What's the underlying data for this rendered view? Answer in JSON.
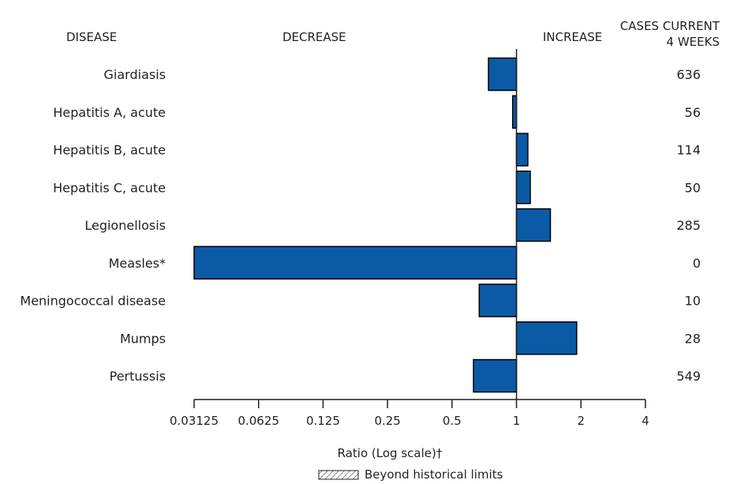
{
  "headers": {
    "disease": "DISEASE",
    "decrease": "DECREASE",
    "increase": "INCREASE",
    "cases_line1": "CASES CURRENT",
    "cases_line2": "4 WEEKS"
  },
  "legend": {
    "label": "Beyond historical limits"
  },
  "chart_data": {
    "type": "bar",
    "orientation": "horizontal",
    "scale": "log2",
    "baseline": 1,
    "xlabel": "Ratio (Log scale)†",
    "xlim": [
      0.03125,
      4
    ],
    "x_ticks": [
      "0.03125",
      "0.0625",
      "0.125",
      "0.25",
      "0.5",
      "1",
      "2",
      "4"
    ],
    "categories": [
      "Giardiasis",
      "Hepatitis A, acute",
      "Hepatitis B, acute",
      "Hepatitis C, acute",
      "Legionellosis",
      "Measles*",
      "Meningococcal disease",
      "Mumps",
      "Pertussis"
    ],
    "values": [
      0.74,
      0.96,
      1.13,
      1.16,
      1.44,
      0.03125,
      0.67,
      1.91,
      0.63
    ],
    "cases_current_4_weeks": [
      "636",
      "56",
      "114",
      "50",
      "285",
      "0",
      "10",
      "28",
      "549"
    ],
    "colors": {
      "bar": "#0b5aa6",
      "bar_stroke": "#000000"
    }
  }
}
